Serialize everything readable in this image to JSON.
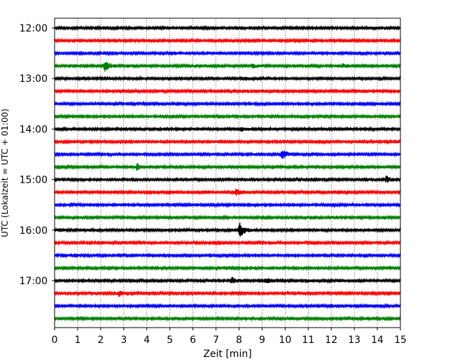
{
  "chart_data": {
    "type": "line",
    "title": "",
    "xlabel": "Zeit  [min]",
    "ylabel": "UTC (Lokalzeit = UTC + 01:00)",
    "xlim": [
      0,
      15
    ],
    "x_ticks": [
      "0",
      "1",
      "2",
      "3",
      "4",
      "5",
      "6",
      "7",
      "8",
      "9",
      "10",
      "11",
      "12",
      "13",
      "14",
      "15"
    ],
    "y_ticks": [
      "12:00",
      "13:00",
      "14:00",
      "15:00",
      "16:00",
      "17:00"
    ],
    "grid": "vertical dotted",
    "trace_colors": [
      "#000000",
      "#ff0000",
      "#0000ff",
      "#008000"
    ],
    "series": [
      {
        "start": "12:00",
        "events": [
          [
            14.3,
            0.4
          ]
        ]
      },
      {
        "start": "12:15",
        "events": []
      },
      {
        "start": "12:30",
        "events": [
          [
            5.1,
            0.6
          ]
        ]
      },
      {
        "start": "12:45",
        "events": [
          [
            2.2,
            2.2
          ],
          [
            8.6,
            0.9
          ],
          [
            12.5,
            0.9
          ]
        ]
      },
      {
        "start": "13:00",
        "events": [
          [
            8.3,
            0.4
          ]
        ]
      },
      {
        "start": "13:15",
        "events": []
      },
      {
        "start": "13:30",
        "events": [
          [
            7.3,
            0.4
          ]
        ]
      },
      {
        "start": "13:45",
        "events": []
      },
      {
        "start": "14:00",
        "events": [
          [
            8.1,
            0.8
          ]
        ]
      },
      {
        "start": "14:15",
        "events": [
          [
            6.8,
            0.4
          ]
        ]
      },
      {
        "start": "14:30",
        "events": [
          [
            9.9,
            2.0
          ]
        ]
      },
      {
        "start": "14:45",
        "events": [
          [
            3.6,
            1.6
          ]
        ]
      },
      {
        "start": "15:00",
        "events": [
          [
            14.4,
            1.3
          ]
        ]
      },
      {
        "start": "15:15",
        "events": [
          [
            7.9,
            1.5
          ]
        ]
      },
      {
        "start": "15:30",
        "events": [
          [
            2.8,
            0.5
          ]
        ]
      },
      {
        "start": "15:45",
        "events": [
          [
            12.2,
            0.5
          ]
        ]
      },
      {
        "start": "16:00",
        "events": [
          [
            8.05,
            3.0
          ],
          [
            0.2,
            0.6
          ]
        ]
      },
      {
        "start": "16:15",
        "events": [
          [
            2.1,
            0.5
          ]
        ]
      },
      {
        "start": "16:30",
        "events": [
          [
            0.9,
            0.7
          ]
        ]
      },
      {
        "start": "16:45",
        "events": []
      },
      {
        "start": "17:00",
        "events": [
          [
            7.7,
            1.6
          ],
          [
            9.2,
            1.1
          ],
          [
            10.9,
            0.6
          ]
        ]
      },
      {
        "start": "17:15",
        "events": [
          [
            2.8,
            1.0
          ],
          [
            1.6,
            0.5
          ]
        ]
      },
      {
        "start": "17:30",
        "events": []
      },
      {
        "start": "17:45",
        "events": []
      }
    ]
  }
}
